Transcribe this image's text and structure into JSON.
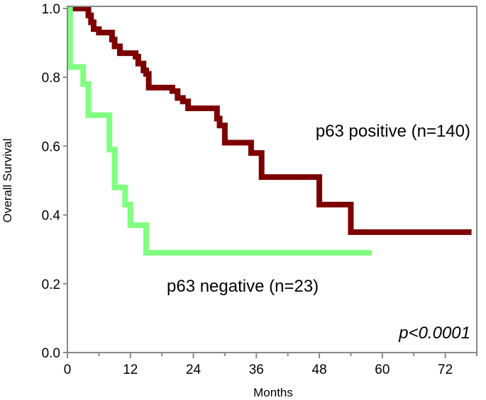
{
  "chart_data": {
    "type": "line",
    "title": "",
    "xlabel": "Months",
    "ylabel": "Overall Survival",
    "xlim": [
      0,
      78
    ],
    "ylim": [
      0,
      1.0
    ],
    "xticks": [
      "0",
      "12",
      "24",
      "36",
      "48",
      "60",
      "72"
    ],
    "yticks": [
      "0.0",
      "0.2",
      "0.4",
      "0.6",
      "0.8",
      "1.0"
    ],
    "grid": false,
    "annotation": "p<0.0001",
    "series": [
      {
        "name": "p63 positive (n=140)",
        "color": "#7d0000",
        "step": true,
        "x": [
          0,
          4,
          4.5,
          5,
          6,
          8.5,
          9,
          10,
          13,
          13.5,
          14.5,
          15,
          15.5,
          20,
          21,
          22,
          23,
          28.5,
          29,
          30,
          35,
          37,
          48,
          54,
          77
        ],
        "y": [
          1.0,
          0.98,
          0.96,
          0.94,
          0.93,
          0.91,
          0.89,
          0.87,
          0.86,
          0.84,
          0.82,
          0.81,
          0.77,
          0.76,
          0.74,
          0.73,
          0.71,
          0.68,
          0.66,
          0.61,
          0.58,
          0.51,
          0.43,
          0.35,
          0.35
        ]
      },
      {
        "name": "p63 negative (n=23)",
        "color": "#80ff80",
        "step": true,
        "x": [
          0,
          0.5,
          3,
          4,
          8,
          9,
          11,
          12,
          15,
          58
        ],
        "y": [
          1.0,
          0.83,
          0.78,
          0.69,
          0.59,
          0.48,
          0.43,
          0.37,
          0.29,
          0.29
        ]
      }
    ]
  }
}
